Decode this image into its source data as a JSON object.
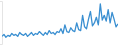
{
  "chart_data": {
    "type": "line",
    "categories": [
      null,
      null,
      null,
      null,
      null,
      null,
      null,
      null,
      null,
      null,
      null,
      null,
      null,
      null,
      null,
      null,
      null,
      null,
      null,
      null,
      null,
      null,
      null,
      null,
      null,
      null,
      null,
      null,
      null,
      null,
      null,
      null,
      null,
      null,
      null,
      null,
      null,
      null,
      null,
      null,
      null,
      null,
      null,
      null,
      null,
      null,
      null,
      null,
      null,
      null,
      null,
      null,
      null,
      null,
      null,
      null,
      null,
      null,
      null,
      null
    ],
    "values": [
      8,
      10,
      7,
      9,
      8,
      11,
      9,
      10,
      8,
      12,
      10,
      9,
      11,
      8,
      10,
      12,
      9,
      11,
      10,
      13,
      11,
      9,
      12,
      10,
      14,
      11,
      12,
      10,
      13,
      12,
      16,
      11,
      20,
      13,
      12,
      17,
      14,
      13,
      22,
      15,
      14,
      30,
      18,
      16,
      26,
      34,
      19,
      22,
      28,
      20,
      42,
      25,
      30,
      24,
      36,
      22,
      33,
      26,
      18,
      21
    ],
    "color": "#3a8fd1",
    "ylim": [
      0,
      45
    ],
    "yticks": [
      0,
      45
    ],
    "grid": false,
    "tick_labels": false
  }
}
